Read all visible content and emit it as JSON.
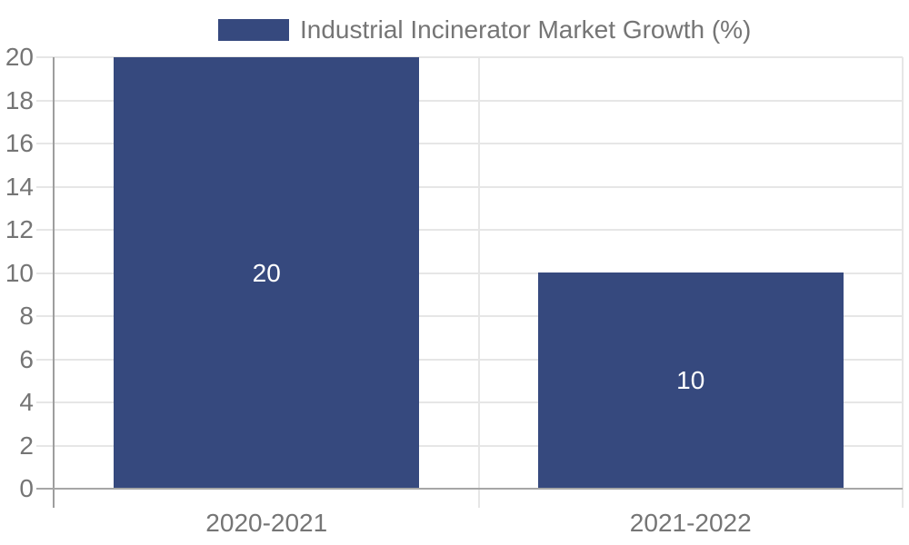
{
  "legend": {
    "label": "Industrial Incinerator Market Growth (%)"
  },
  "chart_data": {
    "type": "bar",
    "title": "Industrial Incinerator Market Growth (%)",
    "categories": [
      "2020-2021",
      "2021-2022"
    ],
    "series": [
      {
        "name": "Industrial Incinerator Market Growth (%)",
        "values": [
          20,
          10
        ]
      }
    ],
    "bar_labels": [
      "20",
      "10"
    ],
    "xlabel": "",
    "ylabel": "",
    "ylim": [
      0,
      20
    ],
    "yticks": [
      0,
      2,
      4,
      6,
      8,
      10,
      12,
      14,
      16,
      18,
      20
    ],
    "grid": true,
    "legend_position": "top",
    "colors": {
      "bar": "#36497e",
      "bar_label": "#ffffff",
      "axis_text": "#757575",
      "gridline": "#e6e6e6",
      "axis_line": "#9e9e9e",
      "baseline": "#a6a6a6"
    }
  }
}
